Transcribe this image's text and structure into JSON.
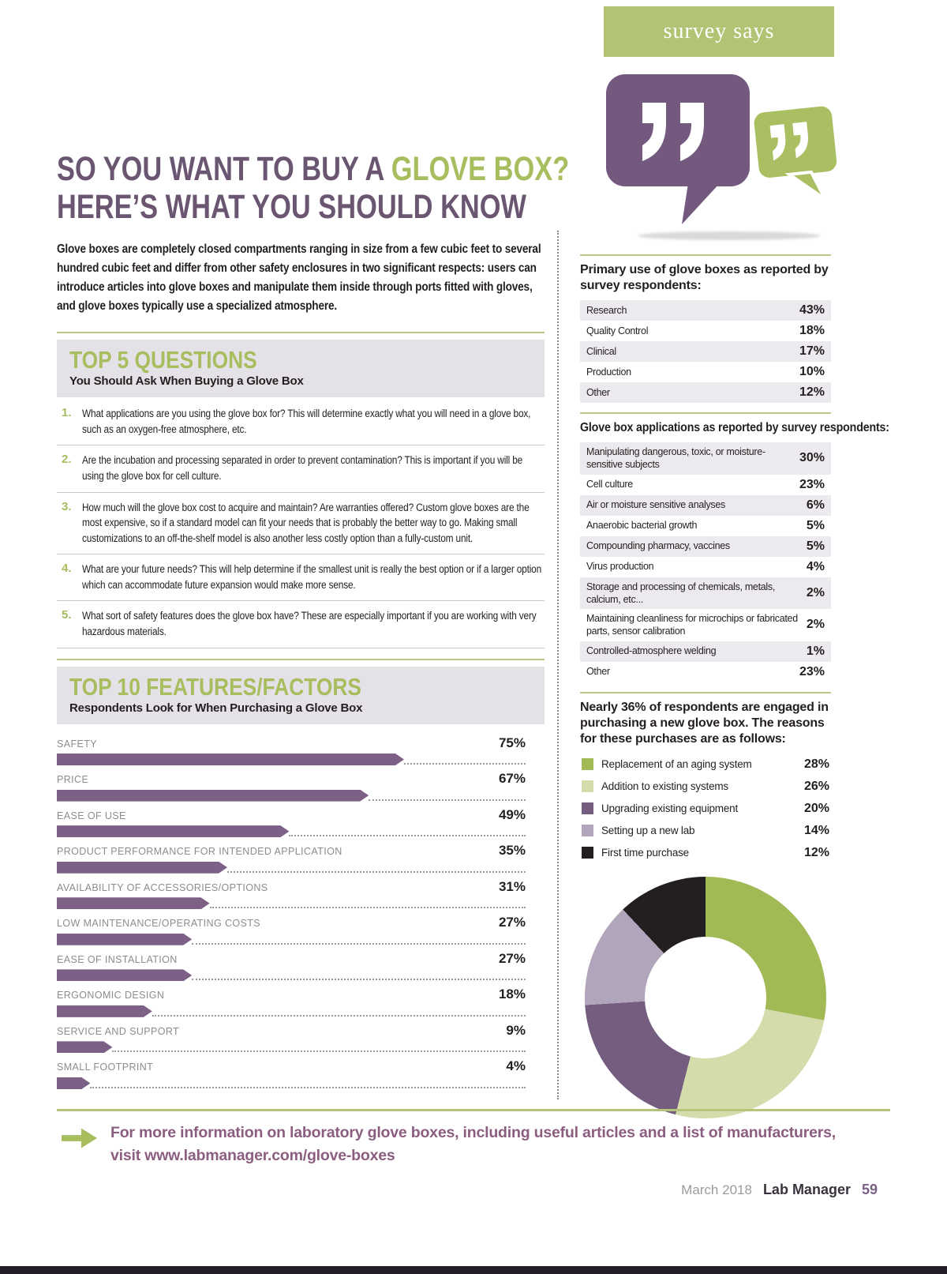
{
  "badge": {
    "label": "survey says"
  },
  "article": {
    "title_main": "SO YOU WANT TO BUY A ",
    "title_accent": "GLOVE BOX?",
    "title_line2": "HERE’S WHAT YOU SHOULD KNOW",
    "intro": "Glove boxes are completely closed compartments ranging in size from a few cubic feet to several hundred cubic feet and differ from other safety enclosures in two significant respects: users can introduce articles into glove boxes and manipulate them inside through ports fitted with gloves, and glove boxes typically use a specialized atmosphere."
  },
  "top5": {
    "title": "TOP 5 QUESTIONS",
    "subtitle": "You Should Ask When Buying a Glove Box",
    "items": [
      {
        "num": "1.",
        "text": "What applications are you using the glove box for? This will determine exactly what you will need in a glove box, such as an oxygen-free atmosphere, etc."
      },
      {
        "num": "2.",
        "text": "Are the incubation and processing separated in order to prevent contamination? This is important if you will be using the glove box for cell culture."
      },
      {
        "num": "3.",
        "text": "How much will the glove box cost to acquire and maintain? Are warranties offered? Custom glove boxes are the most expensive, so if a standard model can fit your needs that is probably the better way to go. Making small customizations to an off-the-shelf model is also another less costly option than a fully-custom unit."
      },
      {
        "num": "4.",
        "text": "What are your future needs? This will help determine if the smallest unit is really the best option or if a larger option which can accommodate future expansion would make more sense."
      },
      {
        "num": "5.",
        "text": "What sort of safety features does the glove box have? These are especially important if you are working with very hazardous materials."
      }
    ]
  },
  "top10": {
    "title": "TOP 10 FEATURES/FACTORS",
    "subtitle": "Respondents Look for When Purchasing a Glove Box",
    "items": [
      {
        "label": "SAFETY",
        "value": "75%",
        "pct": 75
      },
      {
        "label": "PRICE",
        "value": "67%",
        "pct": 67
      },
      {
        "label": "EASE OF USE",
        "value": "49%",
        "pct": 49
      },
      {
        "label": "PRODUCT PERFORMANCE FOR INTENDED APPLICATION",
        "value": "35%",
        "pct": 35
      },
      {
        "label": "AVAILABILITY OF ACCESSORIES/OPTIONS",
        "value": "31%",
        "pct": 31
      },
      {
        "label": "LOW MAINTENANCE/OPERATING COSTS",
        "value": "27%",
        "pct": 27
      },
      {
        "label": "EASE OF INSTALLATION",
        "value": "27%",
        "pct": 27
      },
      {
        "label": "ERGONOMIC DESIGN",
        "value": "18%",
        "pct": 18
      },
      {
        "label": "SERVICE AND SUPPORT",
        "value": "9%",
        "pct": 9
      },
      {
        "label": "SMALL FOOTPRINT",
        "value": "4%",
        "pct": 4
      }
    ]
  },
  "primary_use": {
    "heading": "Primary use of glove boxes as reported by survey respondents:",
    "rows": [
      {
        "label": "Research",
        "value": "43%"
      },
      {
        "label": "Quality Control",
        "value": "18%"
      },
      {
        "label": "Clinical",
        "value": "17%"
      },
      {
        "label": "Production",
        "value": "10%"
      },
      {
        "label": "Other",
        "value": "12%"
      }
    ]
  },
  "applications": {
    "heading": "Glove box applications as reported by survey respondents:",
    "rows": [
      {
        "label": "Manipulating dangerous, toxic, or moisture-sensitive subjects",
        "value": "30%"
      },
      {
        "label": "Cell culture",
        "value": "23%"
      },
      {
        "label": "Air or moisture sensitive analyses",
        "value": "6%"
      },
      {
        "label": "Anaerobic bacterial growth",
        "value": "5%"
      },
      {
        "label": "Compounding pharmacy, vaccines",
        "value": "5%"
      },
      {
        "label": "Virus production",
        "value": "4%"
      },
      {
        "label": "Storage and processing of chemicals, metals, calcium, etc...",
        "value": "2%"
      },
      {
        "label": "Maintaining cleanliness for microchips or fabricated parts, sensor calibration",
        "value": "2%"
      },
      {
        "label": "Controlled-atmosphere welding",
        "value": "1%"
      },
      {
        "label": "Other",
        "value": "23%"
      }
    ]
  },
  "purchases": {
    "heading": "Nearly 36% of respondents are engaged in purchasing a new glove box. The reasons for these purchases are as follows:",
    "items": [
      {
        "label": "Replacement of an aging system",
        "value": "28%",
        "pct": 28,
        "color": "#a2ba55"
      },
      {
        "label": "Addition to existing systems",
        "value": "26%",
        "pct": 26,
        "color": "#d4dcab"
      },
      {
        "label": "Upgrading existing equipment",
        "value": "20%",
        "pct": 20,
        "color": "#755d80"
      },
      {
        "label": "Setting up a new lab",
        "value": "14%",
        "pct": 14,
        "color": "#b1a5bb"
      },
      {
        "label": "First time purchase",
        "value": "12%",
        "pct": 12,
        "color": "#231f20"
      }
    ]
  },
  "callout": {
    "line1": "For more information on laboratory glove boxes, including useful articles and a list of manufacturers,",
    "line2_prefix": "visit ",
    "link": "www.labmanager.com/glove-boxes"
  },
  "footer": {
    "date": "March 2018",
    "magazine": "Lab Manager",
    "page_number": "59"
  },
  "colors": {
    "accent_green": "#a7bd5e",
    "accent_purple": "#6b5672",
    "bar_purple": "#7c6086"
  },
  "chart_data": [
    {
      "type": "table",
      "title": "Primary use of glove boxes as reported by survey respondents",
      "categories": [
        "Research",
        "Quality Control",
        "Clinical",
        "Production",
        "Other"
      ],
      "values": [
        43,
        18,
        17,
        10,
        12
      ],
      "unit": "%"
    },
    {
      "type": "table",
      "title": "Glove box applications as reported by survey respondents",
      "categories": [
        "Manipulating dangerous, toxic, or moisture-sensitive subjects",
        "Cell culture",
        "Air or moisture sensitive analyses",
        "Anaerobic bacterial growth",
        "Compounding pharmacy, vaccines",
        "Virus production",
        "Storage and processing of chemicals, metals, calcium, etc...",
        "Maintaining cleanliness for microchips or fabricated parts, sensor calibration",
        "Controlled-atmosphere welding",
        "Other"
      ],
      "values": [
        30,
        23,
        6,
        5,
        5,
        4,
        2,
        2,
        1,
        23
      ],
      "unit": "%"
    },
    {
      "type": "bar",
      "orientation": "horizontal",
      "title": "Top 10 Features/Factors Respondents Look for When Purchasing a Glove Box",
      "categories": [
        "SAFETY",
        "PRICE",
        "EASE OF USE",
        "PRODUCT PERFORMANCE FOR INTENDED APPLICATION",
        "AVAILABILITY OF ACCESSORIES/OPTIONS",
        "LOW MAINTENANCE/OPERATING COSTS",
        "EASE OF INSTALLATION",
        "ERGONOMIC DESIGN",
        "SERVICE AND SUPPORT",
        "SMALL FOOTPRINT"
      ],
      "values": [
        75,
        67,
        49,
        35,
        31,
        27,
        27,
        18,
        9,
        4
      ],
      "unit": "%",
      "xlim": [
        0,
        75
      ]
    },
    {
      "type": "pie",
      "donut": true,
      "title": "Reasons for purchasing a new glove box",
      "categories": [
        "Replacement of an aging system",
        "Addition to existing systems",
        "Upgrading existing equipment",
        "Setting up a new lab",
        "First time purchase"
      ],
      "values": [
        28,
        26,
        20,
        14,
        12
      ],
      "unit": "%",
      "colors": [
        "#a2ba55",
        "#d4dcab",
        "#755d80",
        "#b1a5bb",
        "#231f20"
      ],
      "legend_position": "above"
    }
  ]
}
